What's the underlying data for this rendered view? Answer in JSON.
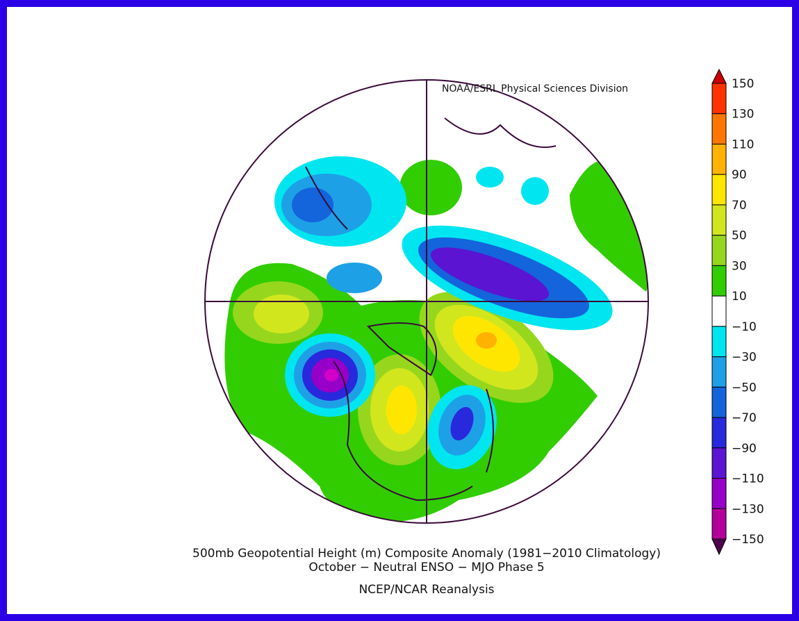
{
  "credit": "NOAA/ESRL Physical Sciences Division",
  "title": {
    "line1": "500mb Geopotential Height (m) Composite Anomaly (1981−2010 Climatology)",
    "line2": "October − Neutral ENSO − MJO Phase 5"
  },
  "source": "NCEP/NCAR Reanalysis",
  "colorbar": {
    "labels": [
      "150",
      "130",
      "110",
      "90",
      "70",
      "50",
      "30",
      "10",
      "−10",
      "−30",
      "−50",
      "−70",
      "−90",
      "−110",
      "−130",
      "−150"
    ],
    "colors": [
      "#cc0000",
      "#ff3300",
      "#ff7700",
      "#ffb300",
      "#ffe600",
      "#d2e61e",
      "#96d71e",
      "#32cd00",
      "#ffffff",
      "#00e6f0",
      "#1ea0e6",
      "#1464dc",
      "#2828dc",
      "#5a14d2",
      "#9600c8",
      "#b4009a",
      "#500050"
    ]
  }
}
